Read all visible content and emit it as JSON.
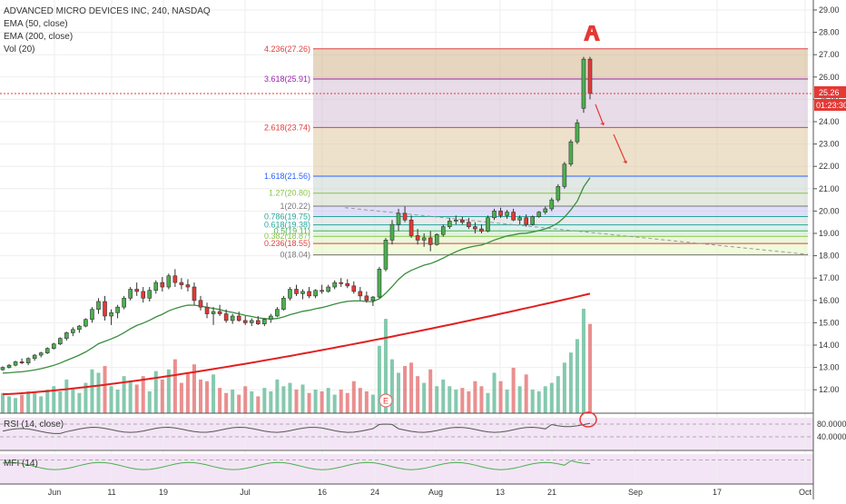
{
  "legend": {
    "symbol": "ADVANCED MICRO DEVICES INC, 240, NASDAQ",
    "ema50": "EMA (50, close)",
    "ema200": "EMA (200, close)",
    "vol": "Vol (20)"
  },
  "price_axis": {
    "ticks": [
      "29.00",
      "28.00",
      "27.00",
      "26.00",
      "25.00",
      "24.00",
      "23.00",
      "22.00",
      "21.00",
      "20.00",
      "19.00",
      "18.00",
      "17.00",
      "16.00",
      "15.00",
      "14.00",
      "13.00",
      "12.00"
    ],
    "last_price": "25.26",
    "countdown": "01:23:30"
  },
  "rsi_panel": {
    "label": "RSI (14, close)",
    "ticks": [
      "80.0000",
      "40.0000"
    ]
  },
  "mfi_panel": {
    "label": "MFI (14)"
  },
  "x_axis": {
    "ticks": [
      "Jun",
      "11",
      "19",
      "Jul",
      "16",
      "24",
      "Aug",
      "13",
      "21",
      "Sep",
      "17",
      "Oct"
    ]
  },
  "earnings_marker": "E",
  "fib_levels": [
    {
      "label": "4.236(27.26)",
      "value": 27.26,
      "color": "#e04040"
    },
    {
      "label": "3.618(25.91)",
      "value": 25.91,
      "color": "#9c27b0"
    },
    {
      "label": "2.618(23.74)",
      "value": 23.74,
      "color": "#e04040"
    },
    {
      "label": "1.618(21.56)",
      "value": 21.56,
      "color": "#2962ff"
    },
    {
      "label": "1.27(20.80)",
      "value": 20.8,
      "color": "#8bc34a"
    },
    {
      "label": "1(20.22)",
      "value": 20.22,
      "color": "#777777"
    },
    {
      "label": "0.786(19.75)",
      "value": 19.75,
      "color": "#26a69a"
    },
    {
      "label": "0.618(19.38)",
      "value": 19.38,
      "color": "#26a69a"
    },
    {
      "label": "0.5(19.11)",
      "value": 19.11,
      "color": "#4caf50"
    },
    {
      "label": "0.382(18.87)",
      "value": 18.87,
      "color": "#8bc34a"
    },
    {
      "label": "0.236(18.55)",
      "value": 18.55,
      "color": "#e04040"
    },
    {
      "label": "0(18.04)",
      "value": 18.04,
      "color": "#777777"
    }
  ],
  "chart_data": {
    "type": "candlestick",
    "title": "ADVANCED MICRO DEVICES INC, 240, NASDAQ",
    "ylim": [
      11.3,
      29.5
    ],
    "candles": [
      [
        12.9,
        13.05,
        12.85,
        13.0
      ],
      [
        13.0,
        13.15,
        12.95,
        13.1
      ],
      [
        13.1,
        13.3,
        13.05,
        13.25
      ],
      [
        13.25,
        13.4,
        13.15,
        13.2
      ],
      [
        13.2,
        13.45,
        13.1,
        13.4
      ],
      [
        13.4,
        13.6,
        13.3,
        13.55
      ],
      [
        13.55,
        13.7,
        13.45,
        13.65
      ],
      [
        13.65,
        13.9,
        13.6,
        13.85
      ],
      [
        13.85,
        14.1,
        13.8,
        14.05
      ],
      [
        14.05,
        14.35,
        14.0,
        14.3
      ],
      [
        14.3,
        14.6,
        14.2,
        14.55
      ],
      [
        14.55,
        14.8,
        14.4,
        14.7
      ],
      [
        14.7,
        14.9,
        14.55,
        14.85
      ],
      [
        14.85,
        15.2,
        14.8,
        15.15
      ],
      [
        15.15,
        15.7,
        15.0,
        15.6
      ],
      [
        15.6,
        16.1,
        15.4,
        15.95
      ],
      [
        15.95,
        16.2,
        15.1,
        15.3
      ],
      [
        15.3,
        15.6,
        14.9,
        15.45
      ],
      [
        15.45,
        15.8,
        15.2,
        15.7
      ],
      [
        15.7,
        16.2,
        15.6,
        16.1
      ],
      [
        16.1,
        16.6,
        16.0,
        16.5
      ],
      [
        16.5,
        16.8,
        16.2,
        16.4
      ],
      [
        16.4,
        16.6,
        15.9,
        16.1
      ],
      [
        16.1,
        16.6,
        15.95,
        16.45
      ],
      [
        16.45,
        16.9,
        16.3,
        16.8
      ],
      [
        16.8,
        17.05,
        16.4,
        16.6
      ],
      [
        16.6,
        17.2,
        16.5,
        17.1
      ],
      [
        17.1,
        17.4,
        16.6,
        16.8
      ],
      [
        16.8,
        17.0,
        16.5,
        16.7
      ],
      [
        16.7,
        16.95,
        16.4,
        16.6
      ],
      [
        16.6,
        16.8,
        15.8,
        16.0
      ],
      [
        16.0,
        16.2,
        15.55,
        15.7
      ],
      [
        15.7,
        15.9,
        15.2,
        15.4
      ],
      [
        15.4,
        15.7,
        14.9,
        15.5
      ],
      [
        15.5,
        15.8,
        15.3,
        15.4
      ],
      [
        15.4,
        15.6,
        15.0,
        15.1
      ],
      [
        15.1,
        15.4,
        14.95,
        15.3
      ],
      [
        15.3,
        15.5,
        15.05,
        15.1
      ],
      [
        15.1,
        15.3,
        14.9,
        15.0
      ],
      [
        15.0,
        15.2,
        14.85,
        15.1
      ],
      [
        15.1,
        15.3,
        14.9,
        14.95
      ],
      [
        14.95,
        15.2,
        14.85,
        15.15
      ],
      [
        15.15,
        15.4,
        15.0,
        15.3
      ],
      [
        15.3,
        15.7,
        15.25,
        15.6
      ],
      [
        15.6,
        16.2,
        15.55,
        16.1
      ],
      [
        16.1,
        16.6,
        16.0,
        16.5
      ],
      [
        16.5,
        16.7,
        16.2,
        16.3
      ],
      [
        16.3,
        16.5,
        16.05,
        16.4
      ],
      [
        16.4,
        16.6,
        16.1,
        16.2
      ],
      [
        16.2,
        16.5,
        16.1,
        16.45
      ],
      [
        16.45,
        16.7,
        16.3,
        16.4
      ],
      [
        16.4,
        16.7,
        16.35,
        16.6
      ],
      [
        16.6,
        16.9,
        16.5,
        16.8
      ],
      [
        16.8,
        17.0,
        16.6,
        16.75
      ],
      [
        16.75,
        16.95,
        16.55,
        16.65
      ],
      [
        16.65,
        16.85,
        16.3,
        16.4
      ],
      [
        16.4,
        16.6,
        16.0,
        16.2
      ],
      [
        16.2,
        16.4,
        15.9,
        16.0
      ],
      [
        16.0,
        16.2,
        15.75,
        16.15
      ],
      [
        16.15,
        17.5,
        16.1,
        17.4
      ],
      [
        17.4,
        18.8,
        17.3,
        18.7
      ],
      [
        18.7,
        19.6,
        18.5,
        19.4
      ],
      [
        19.4,
        20.1,
        19.1,
        19.9
      ],
      [
        19.9,
        20.2,
        19.5,
        19.6
      ],
      [
        19.6,
        19.8,
        18.8,
        18.9
      ],
      [
        18.9,
        19.2,
        18.5,
        18.7
      ],
      [
        18.7,
        19.0,
        18.4,
        18.8
      ],
      [
        18.8,
        19.1,
        18.2,
        18.5
      ],
      [
        18.5,
        19.0,
        18.45,
        18.95
      ],
      [
        18.95,
        19.4,
        18.85,
        19.3
      ],
      [
        19.3,
        19.7,
        19.2,
        19.55
      ],
      [
        19.55,
        19.8,
        19.4,
        19.6
      ],
      [
        19.6,
        19.75,
        19.4,
        19.5
      ],
      [
        19.5,
        19.7,
        19.2,
        19.3
      ],
      [
        19.3,
        19.5,
        19.0,
        19.2
      ],
      [
        19.2,
        19.4,
        19.0,
        19.1
      ],
      [
        19.1,
        19.8,
        19.05,
        19.7
      ],
      [
        19.7,
        20.1,
        19.6,
        20.0
      ],
      [
        20.0,
        20.15,
        19.7,
        19.8
      ],
      [
        19.8,
        20.05,
        19.65,
        19.95
      ],
      [
        19.95,
        20.1,
        19.55,
        19.6
      ],
      [
        19.6,
        19.8,
        19.4,
        19.7
      ],
      [
        19.7,
        19.85,
        19.3,
        19.4
      ],
      [
        19.4,
        19.8,
        19.35,
        19.75
      ],
      [
        19.75,
        20.0,
        19.7,
        19.95
      ],
      [
        19.95,
        20.2,
        19.85,
        20.1
      ],
      [
        20.1,
        20.6,
        20.0,
        20.5
      ],
      [
        20.5,
        21.2,
        20.4,
        21.1
      ],
      [
        21.1,
        22.2,
        21.0,
        22.1
      ],
      [
        22.1,
        23.2,
        22.0,
        23.1
      ],
      [
        23.1,
        24.1,
        23.0,
        23.95
      ],
      [
        24.6,
        26.9,
        24.4,
        26.8
      ],
      [
        26.8,
        26.9,
        25.0,
        25.26
      ]
    ],
    "volume": [
      [
        1.2,
        1
      ],
      [
        1.0,
        1
      ],
      [
        0.9,
        1
      ],
      [
        1.1,
        0
      ],
      [
        1.3,
        1
      ],
      [
        1.2,
        1
      ],
      [
        1.0,
        1
      ],
      [
        1.4,
        1
      ],
      [
        1.6,
        1
      ],
      [
        1.3,
        1
      ],
      [
        2.0,
        1
      ],
      [
        1.5,
        1
      ],
      [
        1.2,
        1
      ],
      [
        1.8,
        1
      ],
      [
        2.6,
        1
      ],
      [
        2.4,
        1
      ],
      [
        2.8,
        0
      ],
      [
        1.6,
        1
      ],
      [
        1.4,
        1
      ],
      [
        2.2,
        1
      ],
      [
        1.9,
        1
      ],
      [
        1.7,
        0
      ],
      [
        2.2,
        0
      ],
      [
        1.3,
        1
      ],
      [
        2.5,
        1
      ],
      [
        2.0,
        0
      ],
      [
        2.6,
        1
      ],
      [
        3.2,
        0
      ],
      [
        1.8,
        0
      ],
      [
        2.4,
        0
      ],
      [
        2.9,
        0
      ],
      [
        2.0,
        0
      ],
      [
        1.9,
        0
      ],
      [
        2.3,
        1
      ],
      [
        1.5,
        0
      ],
      [
        1.2,
        0
      ],
      [
        1.4,
        1
      ],
      [
        1.1,
        0
      ],
      [
        1.6,
        0
      ],
      [
        1.3,
        1
      ],
      [
        1.0,
        0
      ],
      [
        1.5,
        1
      ],
      [
        1.3,
        1
      ],
      [
        2.0,
        1
      ],
      [
        1.6,
        1
      ],
      [
        1.8,
        1
      ],
      [
        1.4,
        0
      ],
      [
        1.7,
        1
      ],
      [
        1.2,
        0
      ],
      [
        1.4,
        1
      ],
      [
        1.3,
        0
      ],
      [
        1.5,
        1
      ],
      [
        1.1,
        1
      ],
      [
        1.4,
        0
      ],
      [
        1.2,
        0
      ],
      [
        1.9,
        0
      ],
      [
        1.5,
        0
      ],
      [
        1.3,
        0
      ],
      [
        1.1,
        1
      ],
      [
        4.0,
        1
      ],
      [
        5.6,
        1
      ],
      [
        3.2,
        1
      ],
      [
        2.4,
        1
      ],
      [
        2.8,
        0
      ],
      [
        3.0,
        0
      ],
      [
        2.2,
        0
      ],
      [
        1.8,
        1
      ],
      [
        2.6,
        0
      ],
      [
        1.6,
        1
      ],
      [
        2.0,
        1
      ],
      [
        1.6,
        1
      ],
      [
        1.4,
        1
      ],
      [
        1.5,
        0
      ],
      [
        1.3,
        0
      ],
      [
        1.9,
        0
      ],
      [
        1.6,
        0
      ],
      [
        1.2,
        1
      ],
      [
        2.4,
        1
      ],
      [
        1.9,
        0
      ],
      [
        1.4,
        1
      ],
      [
        2.7,
        0
      ],
      [
        1.6,
        1
      ],
      [
        2.3,
        0
      ],
      [
        1.4,
        1
      ],
      [
        1.3,
        1
      ],
      [
        1.6,
        1
      ],
      [
        1.8,
        1
      ],
      [
        2.2,
        1
      ],
      [
        3.0,
        1
      ],
      [
        3.6,
        1
      ],
      [
        4.4,
        1
      ],
      [
        6.2,
        1
      ],
      [
        5.3,
        0
      ]
    ]
  }
}
